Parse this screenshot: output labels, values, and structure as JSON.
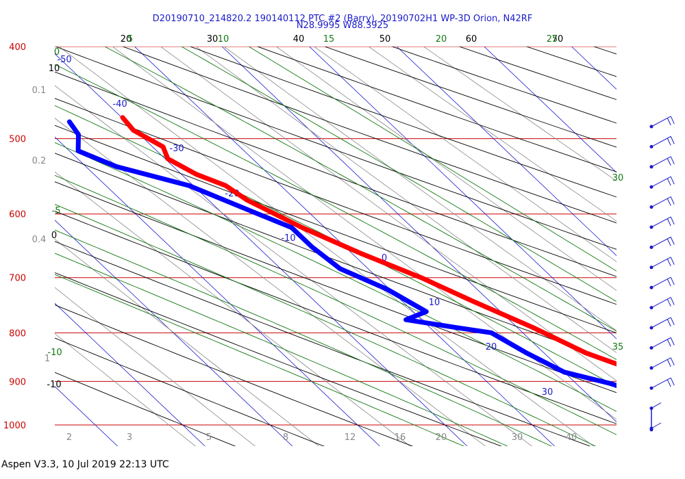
{
  "chart_data": {
    "type": "skew-t",
    "title_line1": "D20190710_214820.2 190140112 PTC #2 (Barry), 20190702H1 WP-3D Orion, N42RF",
    "title_line2": "N28.9995 W88.3925",
    "pressure_levels": [
      400,
      500,
      600,
      700,
      800,
      900,
      1000
    ],
    "pressure_range": [
      400,
      1050
    ],
    "isotherm_labels": [
      "-50",
      "-40",
      "-30",
      "-20",
      "-10",
      "0",
      "10",
      "20",
      "30"
    ],
    "dry_adiabat_labels": [
      "20",
      "30",
      "40",
      "50",
      "60",
      "70"
    ],
    "dry_adiabat_side_labels": [
      "10",
      "0",
      "-10"
    ],
    "moist_adiabat_labels": [
      "5",
      "10",
      "15",
      "20",
      "25"
    ],
    "moist_adiabat_side_labels": [
      "0",
      "-5",
      "-10",
      "30",
      "35"
    ],
    "mixing_ratio_labels": [
      "2",
      "3",
      "5",
      "8",
      "12",
      "16",
      "20",
      "30",
      "40"
    ],
    "mixing_ratio_side_labels": [
      "0.1",
      "0.2",
      "0.4",
      "1"
    ],
    "temperature_profile": {
      "name": "Temperature",
      "color": "#ff0000",
      "points": [
        [
          475,
          -9.9
        ],
        [
          490,
          -10.2
        ],
        [
          510,
          -8.8
        ],
        [
          525,
          -9.7
        ],
        [
          545,
          -8.3
        ],
        [
          560,
          -6.3
        ],
        [
          580,
          -5.6
        ],
        [
          620,
          -2.6
        ],
        [
          660,
          1.0
        ],
        [
          700,
          5.0
        ],
        [
          740,
          8.0
        ],
        [
          790,
          11.8
        ],
        [
          840,
          14.8
        ],
        [
          880,
          18.6
        ],
        [
          905,
          20.4
        ],
        [
          930,
          22.0
        ],
        [
          960,
          24.0
        ],
        [
          1000,
          26.1
        ],
        [
          1012,
          26.5
        ]
      ]
    },
    "dewpoint_profile": {
      "name": "Dew point",
      "color": "#0000ff",
      "points": [
        [
          480,
          -16.5
        ],
        [
          495,
          -17.0
        ],
        [
          515,
          -19.0
        ],
        [
          535,
          -16.5
        ],
        [
          560,
          -10.5
        ],
        [
          600,
          -6.0
        ],
        [
          620,
          -3.8
        ],
        [
          650,
          -3.8
        ],
        [
          685,
          -3.2
        ],
        [
          720,
          -0.3
        ],
        [
          760,
          1.5
        ],
        [
          775,
          -1.8
        ],
        [
          790,
          3.0
        ],
        [
          800,
          6.4
        ],
        [
          840,
          8.0
        ],
        [
          880,
          10.0
        ],
        [
          905,
          14.0
        ],
        [
          930,
          16.4
        ],
        [
          960,
          19.6
        ],
        [
          990,
          21.8
        ],
        [
          1010,
          23.6
        ]
      ]
    },
    "wind_barbs_count": 16,
    "footer": "Aspen V3.3, 10 Jul 2019  22:13 UTC"
  }
}
